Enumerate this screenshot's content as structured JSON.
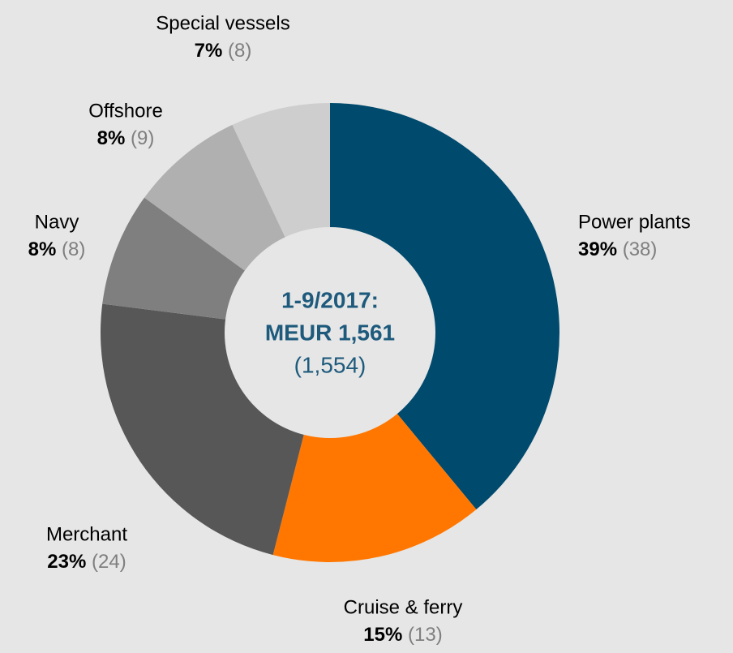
{
  "chart_data": {
    "type": "donut",
    "categories": [
      "Power plants",
      "Cruise & ferry",
      "Merchant",
      "Navy",
      "Offshore",
      "Special vessels"
    ],
    "values": [
      39,
      15,
      23,
      8,
      8,
      7
    ],
    "value_labels": [
      "39%",
      "15%",
      "23%",
      "8%",
      "8%",
      "7%"
    ],
    "previous_values": [
      38,
      13,
      24,
      8,
      9,
      8
    ],
    "previous_value_labels": [
      "(38)",
      "(13)",
      "(24)",
      "(8)",
      "(9)",
      "(8)"
    ],
    "colors": [
      "#004a6d",
      "#ff7700",
      "#575757",
      "#7f7f7f",
      "#b0b0b0",
      "#cecece"
    ],
    "center_label": [
      "1-9/2017:",
      "MEUR 1,561",
      "(1,554)"
    ]
  }
}
